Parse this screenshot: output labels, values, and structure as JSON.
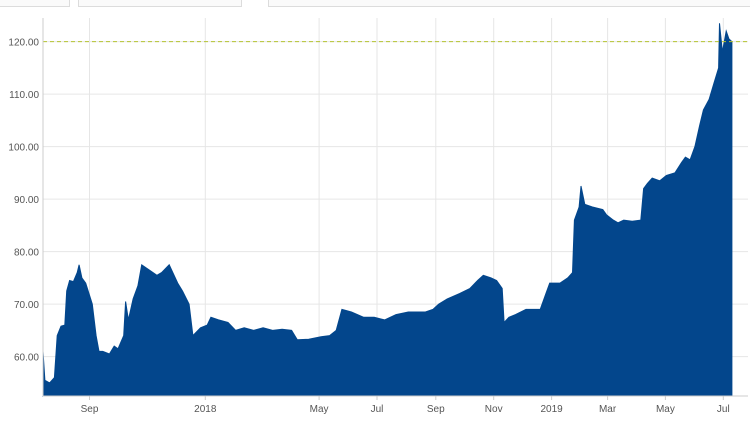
{
  "chart_data": {
    "type": "area",
    "title": "",
    "xlabel": "",
    "ylabel": "",
    "ylim": [
      52.5,
      124.5
    ],
    "xlim": [
      "2017-07-14",
      "2019-07-27"
    ],
    "grid": true,
    "reference_line": {
      "value": 120,
      "color": "#b5c432",
      "style": "dashed"
    },
    "colors": {
      "fill": "#03468c",
      "grid": "#e6e6e6",
      "axis": "#cccccc"
    },
    "y_ticks": [
      {
        "value": 60,
        "label": "60.00"
      },
      {
        "value": 70,
        "label": "70.00"
      },
      {
        "value": 80,
        "label": "80.00"
      },
      {
        "value": 90,
        "label": "90.00"
      },
      {
        "value": 100,
        "label": "100.00"
      },
      {
        "value": 110,
        "label": "110.00"
      },
      {
        "value": 120,
        "label": "120.00"
      }
    ],
    "x_ticks": [
      {
        "date": "2017-09-01",
        "label": "Sep"
      },
      {
        "date": "2018-01-01",
        "label": "2018"
      },
      {
        "date": "2018-05-01",
        "label": "May"
      },
      {
        "date": "2018-07-01",
        "label": "Jul"
      },
      {
        "date": "2018-09-01",
        "label": "Sep"
      },
      {
        "date": "2018-11-01",
        "label": "Nov"
      },
      {
        "date": "2019-01-01",
        "label": "2019"
      },
      {
        "date": "2019-03-01",
        "label": "Mar"
      },
      {
        "date": "2019-05-01",
        "label": "May"
      },
      {
        "date": "2019-07-01",
        "label": "Jul"
      }
    ],
    "series": [
      {
        "values": [
          [
            "2017-07-14",
            61.0
          ],
          [
            "2017-07-16",
            55.5
          ],
          [
            "2017-07-21",
            55.0
          ],
          [
            "2017-07-26",
            56.0
          ],
          [
            "2017-07-29",
            64.0
          ],
          [
            "2017-08-02",
            65.8
          ],
          [
            "2017-08-06",
            66.0
          ],
          [
            "2017-08-08",
            72.5
          ],
          [
            "2017-08-11",
            74.5
          ],
          [
            "2017-08-15",
            74.3
          ],
          [
            "2017-08-19",
            76.0
          ],
          [
            "2017-08-21",
            77.5
          ],
          [
            "2017-08-24",
            75.0
          ],
          [
            "2017-08-28",
            74.0
          ],
          [
            "2017-09-04",
            70.0
          ],
          [
            "2017-09-08",
            64.0
          ],
          [
            "2017-09-11",
            61.0
          ],
          [
            "2017-09-15",
            61.0
          ],
          [
            "2017-09-22",
            60.5
          ],
          [
            "2017-09-27",
            62.0
          ],
          [
            "2017-10-01",
            61.5
          ],
          [
            "2017-10-07",
            64.0
          ],
          [
            "2017-10-09",
            70.5
          ],
          [
            "2017-10-12",
            67.0
          ],
          [
            "2017-10-17",
            71.0
          ],
          [
            "2017-10-22",
            73.5
          ],
          [
            "2017-10-26",
            77.5
          ],
          [
            "2017-11-03",
            76.5
          ],
          [
            "2017-11-11",
            75.5
          ],
          [
            "2017-11-16",
            76.0
          ],
          [
            "2017-11-24",
            77.5
          ],
          [
            "2017-12-03",
            74.0
          ],
          [
            "2017-12-08",
            72.5
          ],
          [
            "2017-12-15",
            70.0
          ],
          [
            "2017-12-19",
            64.0
          ],
          [
            "2017-12-27",
            65.5
          ],
          [
            "2018-01-03",
            66.0
          ],
          [
            "2018-01-07",
            67.5
          ],
          [
            "2018-01-15",
            67.0
          ],
          [
            "2018-01-25",
            66.5
          ],
          [
            "2018-02-02",
            65.0
          ],
          [
            "2018-02-11",
            65.5
          ],
          [
            "2018-02-21",
            65.0
          ],
          [
            "2018-03-03",
            65.5
          ],
          [
            "2018-03-13",
            65.0
          ],
          [
            "2018-03-23",
            65.2
          ],
          [
            "2018-04-02",
            65.0
          ],
          [
            "2018-04-08",
            63.2
          ],
          [
            "2018-04-20",
            63.3
          ],
          [
            "2018-05-03",
            63.8
          ],
          [
            "2018-05-12",
            64.0
          ],
          [
            "2018-05-19",
            65.0
          ],
          [
            "2018-05-25",
            69.0
          ],
          [
            "2018-06-04",
            68.5
          ],
          [
            "2018-06-17",
            67.5
          ],
          [
            "2018-06-28",
            67.5
          ],
          [
            "2018-07-09",
            67.0
          ],
          [
            "2018-07-21",
            68.0
          ],
          [
            "2018-08-03",
            68.5
          ],
          [
            "2018-08-21",
            68.5
          ],
          [
            "2018-08-29",
            69.0
          ],
          [
            "2018-09-04",
            70.0
          ],
          [
            "2018-09-13",
            71.0
          ],
          [
            "2018-09-26",
            72.0
          ],
          [
            "2018-10-07",
            73.0
          ],
          [
            "2018-10-15",
            74.5
          ],
          [
            "2018-10-21",
            75.5
          ],
          [
            "2018-10-29",
            75.0
          ],
          [
            "2018-11-04",
            74.5
          ],
          [
            "2018-11-10",
            73.0
          ],
          [
            "2018-11-12",
            66.5
          ],
          [
            "2018-11-17",
            67.5
          ],
          [
            "2018-11-24",
            68.0
          ],
          [
            "2018-12-05",
            69.0
          ],
          [
            "2018-12-20",
            69.0
          ],
          [
            "2018-12-26",
            72.0
          ],
          [
            "2018-12-30",
            74.0
          ],
          [
            "2019-01-10",
            74.0
          ],
          [
            "2019-01-18",
            75.0
          ],
          [
            "2019-01-23",
            76.0
          ],
          [
            "2019-01-25",
            86.0
          ],
          [
            "2019-01-30",
            88.5
          ],
          [
            "2019-02-01",
            92.5
          ],
          [
            "2019-02-05",
            89.0
          ],
          [
            "2019-02-13",
            88.5
          ],
          [
            "2019-02-24",
            88.0
          ],
          [
            "2019-02-28",
            87.0
          ],
          [
            "2019-03-07",
            86.0
          ],
          [
            "2019-03-12",
            85.5
          ],
          [
            "2019-03-18",
            86.0
          ],
          [
            "2019-03-27",
            85.8
          ],
          [
            "2019-04-05",
            86.0
          ],
          [
            "2019-04-08",
            92.0
          ],
          [
            "2019-04-12",
            93.0
          ],
          [
            "2019-04-17",
            94.0
          ],
          [
            "2019-04-25",
            93.5
          ],
          [
            "2019-05-02",
            94.5
          ],
          [
            "2019-05-11",
            95.0
          ],
          [
            "2019-05-18",
            97.0
          ],
          [
            "2019-05-22",
            98.0
          ],
          [
            "2019-05-27",
            97.5
          ],
          [
            "2019-06-01",
            100.0
          ],
          [
            "2019-06-06",
            104.0
          ],
          [
            "2019-06-10",
            107.0
          ],
          [
            "2019-06-16",
            109.0
          ],
          [
            "2019-06-21",
            112.0
          ],
          [
            "2019-06-26",
            115.0
          ],
          [
            "2019-06-27",
            123.5
          ],
          [
            "2019-06-30",
            118.0
          ],
          [
            "2019-07-04",
            122.0
          ],
          [
            "2019-07-07",
            120.5
          ],
          [
            "2019-07-10",
            120.0
          ]
        ]
      }
    ]
  }
}
